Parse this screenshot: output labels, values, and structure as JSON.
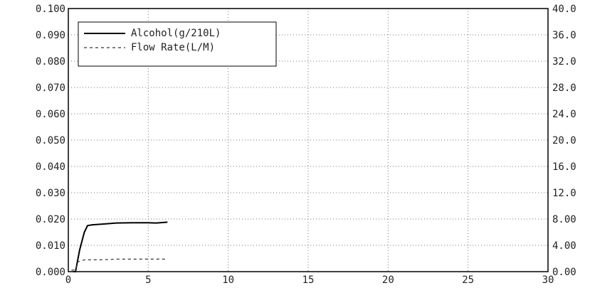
{
  "chart_data": {
    "type": "line",
    "title": "",
    "xlabel": "",
    "ylabel": "",
    "y2label": "",
    "xlim": [
      0,
      30
    ],
    "ylim": [
      0,
      0.1
    ],
    "y2lim": [
      0,
      40
    ],
    "grid": true,
    "legend": "top-left",
    "x_ticks": [
      {
        "value": 0,
        "label": "0"
      },
      {
        "value": 5,
        "label": "5"
      },
      {
        "value": 10,
        "label": "10"
      },
      {
        "value": 15,
        "label": "15"
      },
      {
        "value": 20,
        "label": "20"
      },
      {
        "value": 25,
        "label": "25"
      },
      {
        "value": 30,
        "label": "30"
      }
    ],
    "y_ticks": [
      {
        "value": 0.0,
        "label": "0.000"
      },
      {
        "value": 0.01,
        "label": "0.010"
      },
      {
        "value": 0.02,
        "label": "0.020"
      },
      {
        "value": 0.03,
        "label": "0.030"
      },
      {
        "value": 0.04,
        "label": "0.040"
      },
      {
        "value": 0.05,
        "label": "0.050"
      },
      {
        "value": 0.06,
        "label": "0.060"
      },
      {
        "value": 0.07,
        "label": "0.070"
      },
      {
        "value": 0.08,
        "label": "0.080"
      },
      {
        "value": 0.09,
        "label": "0.090"
      },
      {
        "value": 0.1,
        "label": "0.100"
      }
    ],
    "y2_ticks": [
      {
        "value": 0,
        "label": "0.00"
      },
      {
        "value": 4,
        "label": "4.00"
      },
      {
        "value": 8,
        "label": "8.00"
      },
      {
        "value": 12,
        "label": "12.0"
      },
      {
        "value": 16,
        "label": "16.0"
      },
      {
        "value": 20,
        "label": "20.0"
      },
      {
        "value": 24,
        "label": "24.0"
      },
      {
        "value": 28,
        "label": "28.0"
      },
      {
        "value": 32,
        "label": "32.0"
      },
      {
        "value": 36,
        "label": "36.0"
      },
      {
        "value": 40,
        "label": "40.0"
      }
    ],
    "series": [
      {
        "name": "Alcohol(g/210L)",
        "axis": "left",
        "style": "solid",
        "color": "#000000",
        "x": [
          0.3,
          0.45,
          0.7,
          1.0,
          1.2,
          1.5,
          2.0,
          3.0,
          4.0,
          5.0,
          5.5,
          6.2
        ],
        "y": [
          0.0,
          0.0,
          0.008,
          0.015,
          0.0175,
          0.0178,
          0.018,
          0.0185,
          0.0186,
          0.0186,
          0.0185,
          0.0188
        ]
      },
      {
        "name": "Flow Rate(L/M)",
        "axis": "right",
        "style": "dashed",
        "color": "#333333",
        "x": [
          0.2,
          0.45,
          0.6,
          1.0,
          2.0,
          3.0,
          4.0,
          5.0,
          6.2
        ],
        "y": [
          0.2,
          0.3,
          1.5,
          1.8,
          1.8,
          1.9,
          1.9,
          1.9,
          1.9
        ]
      }
    ]
  }
}
